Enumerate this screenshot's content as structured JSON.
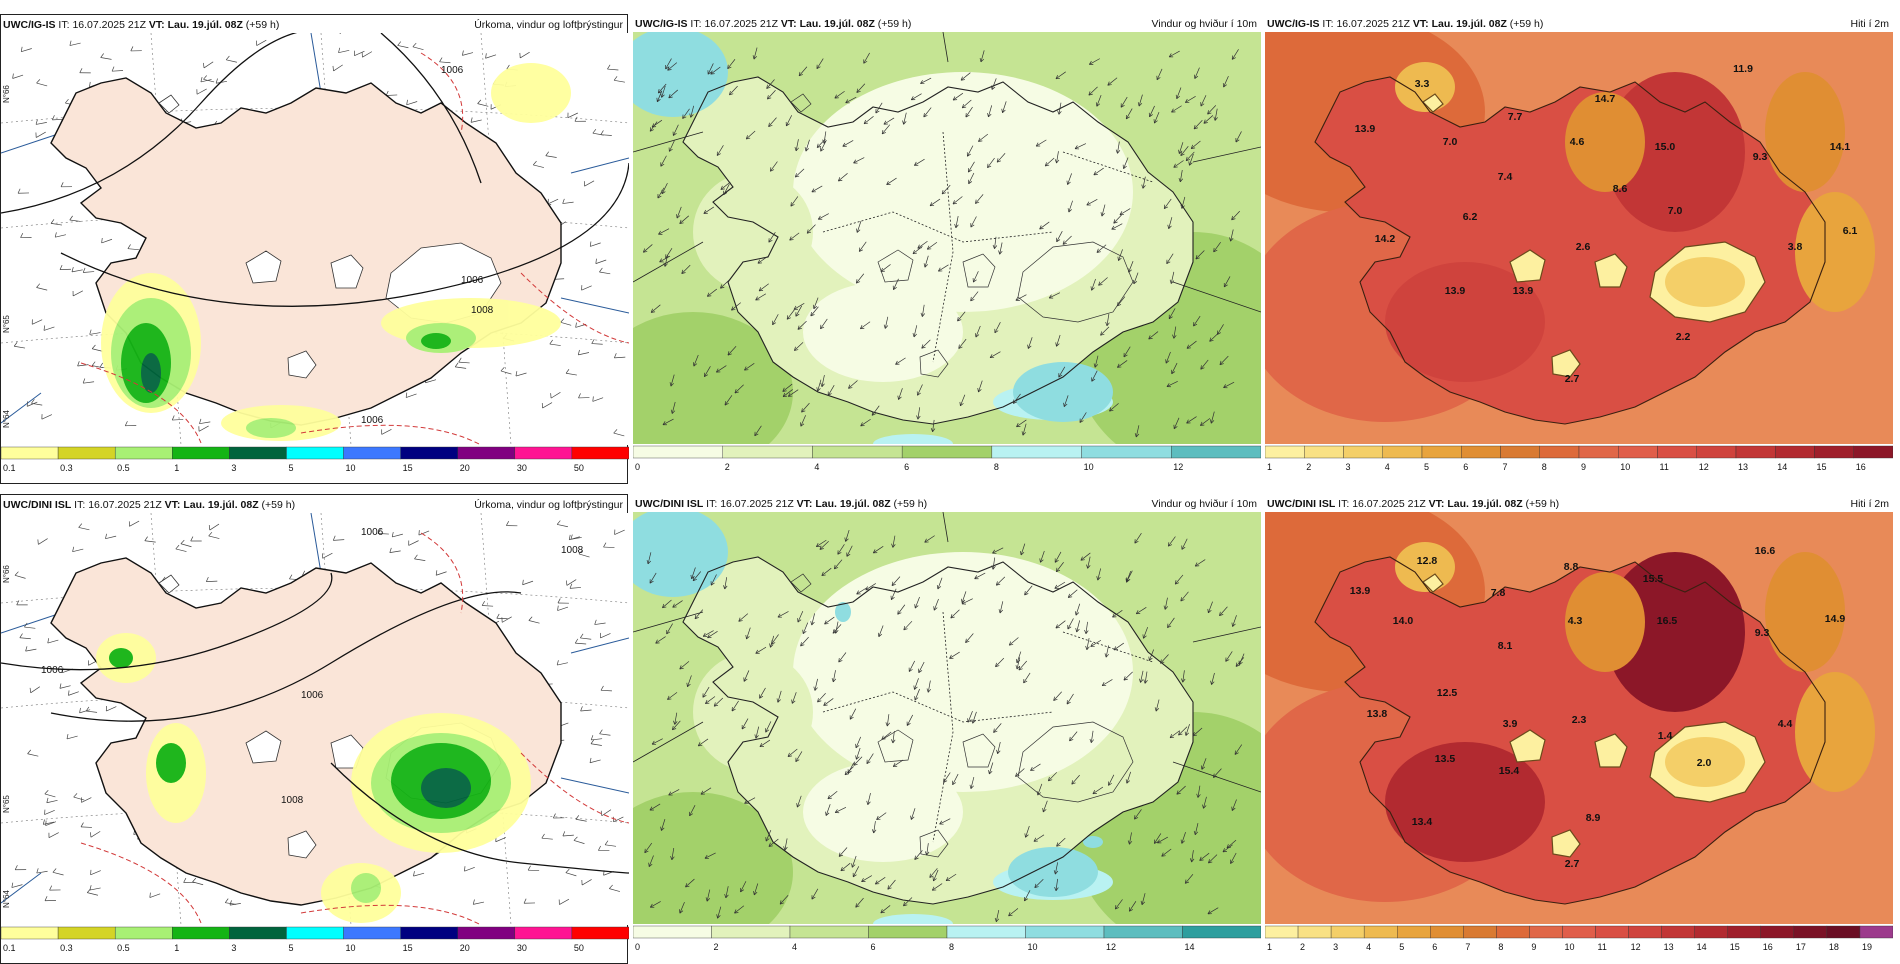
{
  "header_common": {
    "it_label": "IT:",
    "it_value": "16.07.2025 21Z",
    "vt_label": "VT:",
    "vt_value": "Lau. 19.júl. 08Z",
    "lead": "(+59 h)"
  },
  "rows": [
    {
      "model": "UWC/IG-IS",
      "panels": [
        {
          "title": "Úrkoma, vindur og loftþrýstingur",
          "kind": "precip",
          "colorbar_ticks": [
            "0.1",
            "0.3",
            "0.5",
            "1",
            "3",
            "5",
            "10",
            "15",
            "20",
            "30",
            "50"
          ],
          "colorbar_colors": [
            "#ffff9c",
            "#d4d426",
            "#a8f074",
            "#14b414",
            "#00643c",
            "#00ffff",
            "#3c78ff",
            "#000080",
            "#800080",
            "#ff1493",
            "#ff0000"
          ],
          "pressure_labels": [
            "1006",
            "1006",
            "1008",
            "1006"
          ]
        },
        {
          "title": "Vindur og hviður í 10m",
          "kind": "wind",
          "colorbar_ticks": [
            "0",
            "2",
            "4",
            "6",
            "8",
            "10",
            "12"
          ],
          "colorbar_colors": [
            "#f6fce4",
            "#e2f2bc",
            "#c5e493",
            "#a3d16a",
            "#b9f2f2",
            "#8fdde0",
            "#5dbdbf"
          ]
        },
        {
          "title": "Hiti í 2m",
          "kind": "temp",
          "colorbar_ticks": [
            "1",
            "2",
            "3",
            "4",
            "5",
            "6",
            "7",
            "8",
            "9",
            "10",
            "11",
            "12",
            "13",
            "14",
            "15",
            "16"
          ],
          "colorbar_colors": [
            "#fdf0a0",
            "#f9e184",
            "#f4cf68",
            "#eeba50",
            "#e8a43d",
            "#e08e33",
            "#d97a32",
            "#dd6a3a",
            "#e06748",
            "#e05e4a",
            "#d94f44",
            "#cf433d",
            "#c23636",
            "#b22a30",
            "#9f1f2b",
            "#8c1728"
          ],
          "temp_labels": [
            "3.3",
            "14.7",
            "11.9",
            "13.9",
            "7.0",
            "7.7",
            "4.6",
            "15.0",
            "9.3",
            "14.1",
            "7.4",
            "8.6",
            "7.0",
            "6.2",
            "14.2",
            "2.6",
            "3.8",
            "6.1",
            "13.9",
            "13.9",
            "2.2",
            "2.7"
          ]
        }
      ]
    },
    {
      "model": "UWC/DINI ISL",
      "panels": [
        {
          "title": "Úrkoma, vindur og loftþrýstingur",
          "kind": "precip",
          "colorbar_ticks": [
            "0.1",
            "0.3",
            "0.5",
            "1",
            "3",
            "5",
            "10",
            "15",
            "20",
            "30",
            "50"
          ],
          "colorbar_colors": [
            "#ffff9c",
            "#d4d426",
            "#a8f074",
            "#14b414",
            "#00643c",
            "#00ffff",
            "#3c78ff",
            "#000080",
            "#800080",
            "#ff1493",
            "#ff0000"
          ],
          "pressure_labels": [
            "1006",
            "1008",
            "1006",
            "1006",
            "1008"
          ]
        },
        {
          "title": "Vindur og hviður í 10m",
          "kind": "wind",
          "colorbar_ticks": [
            "0",
            "2",
            "4",
            "6",
            "8",
            "10",
            "12",
            "14"
          ],
          "colorbar_colors": [
            "#f6fce4",
            "#e2f2bc",
            "#c5e493",
            "#a3d16a",
            "#b9f2f2",
            "#8fdde0",
            "#5dbdbf",
            "#2e9e9e"
          ]
        },
        {
          "title": "Hiti í 2m",
          "kind": "temp",
          "colorbar_ticks": [
            "1",
            "2",
            "3",
            "4",
            "5",
            "6",
            "7",
            "8",
            "9",
            "10",
            "11",
            "12",
            "13",
            "14",
            "15",
            "16",
            "17",
            "18",
            "19"
          ],
          "colorbar_colors": [
            "#fdf0a0",
            "#f9e184",
            "#f4cf68",
            "#eeba50",
            "#e8a43d",
            "#e08e33",
            "#d97a32",
            "#dd6a3a",
            "#e06748",
            "#e05e4a",
            "#d94f44",
            "#cf433d",
            "#c23636",
            "#b22a30",
            "#9f1f2b",
            "#8c1728",
            "#7a1226",
            "#6a0e24",
            "#9c3a8c"
          ],
          "temp_labels": [
            "12.8",
            "8.8",
            "16.6",
            "13.9",
            "7.8",
            "15.5",
            "14.0",
            "4.3",
            "16.5",
            "9.3",
            "14.9",
            "8.1",
            "12.5",
            "3.9",
            "2.3",
            "13.8",
            "1.4",
            "4.4",
            "13.5",
            "15.4",
            "2.0",
            "13.4",
            "8.9",
            "2.7"
          ]
        }
      ]
    }
  ],
  "latitude_labels": [
    "N°66",
    "N°65",
    "N°64"
  ]
}
